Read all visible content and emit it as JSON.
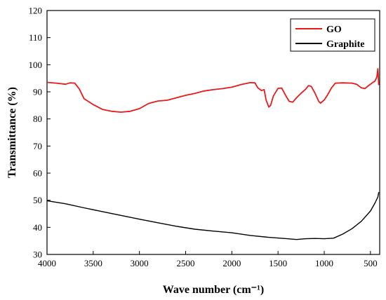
{
  "chart_data": {
    "type": "line",
    "xlabel": "Wave number (cm⁻¹)",
    "ylabel": "Transmittance (%)",
    "xlim": [
      4000,
      400
    ],
    "ylim": [
      30,
      120
    ],
    "x_reversed": true,
    "x_ticks": [
      4000,
      3500,
      3000,
      2500,
      2000,
      1500,
      1000,
      500
    ],
    "y_ticks": [
      30,
      40,
      50,
      60,
      70,
      80,
      90,
      100,
      110,
      120
    ],
    "grid": false,
    "legend_position": "top-right",
    "series": [
      {
        "name": "GO",
        "color": "#e8191a",
        "points": [
          [
            4000,
            93.5
          ],
          [
            3900,
            93.2
          ],
          [
            3800,
            92.8
          ],
          [
            3750,
            93.3
          ],
          [
            3700,
            93.2
          ],
          [
            3650,
            91.0
          ],
          [
            3600,
            87.5
          ],
          [
            3500,
            85.3
          ],
          [
            3400,
            83.5
          ],
          [
            3300,
            82.8
          ],
          [
            3200,
            82.5
          ],
          [
            3100,
            82.8
          ],
          [
            3000,
            83.8
          ],
          [
            2900,
            85.7
          ],
          [
            2800,
            86.6
          ],
          [
            2700,
            86.9
          ],
          [
            2600,
            87.8
          ],
          [
            2500,
            88.7
          ],
          [
            2400,
            89.4
          ],
          [
            2300,
            90.3
          ],
          [
            2200,
            90.8
          ],
          [
            2100,
            91.2
          ],
          [
            2000,
            91.7
          ],
          [
            1900,
            92.7
          ],
          [
            1800,
            93.4
          ],
          [
            1750,
            93.3
          ],
          [
            1720,
            91.5
          ],
          [
            1680,
            90.5
          ],
          [
            1650,
            90.8
          ],
          [
            1630,
            87.0
          ],
          [
            1600,
            84.4
          ],
          [
            1580,
            85.0
          ],
          [
            1550,
            88.5
          ],
          [
            1500,
            91.3
          ],
          [
            1460,
            91.4
          ],
          [
            1420,
            88.8
          ],
          [
            1380,
            86.5
          ],
          [
            1340,
            86.2
          ],
          [
            1300,
            87.8
          ],
          [
            1250,
            89.5
          ],
          [
            1200,
            91.0
          ],
          [
            1170,
            92.3
          ],
          [
            1140,
            92.0
          ],
          [
            1100,
            89.5
          ],
          [
            1060,
            86.5
          ],
          [
            1040,
            85.8
          ],
          [
            1000,
            87.0
          ],
          [
            970,
            88.5
          ],
          [
            920,
            91.5
          ],
          [
            880,
            93.2
          ],
          [
            800,
            93.3
          ],
          [
            700,
            93.2
          ],
          [
            650,
            92.8
          ],
          [
            600,
            91.5
          ],
          [
            560,
            91.2
          ],
          [
            520,
            92.3
          ],
          [
            480,
            93.3
          ],
          [
            450,
            94.0
          ],
          [
            430,
            95.5
          ],
          [
            420,
            98.5
          ],
          [
            415,
            96.0
          ],
          [
            410,
            92.5
          ]
        ]
      },
      {
        "name": "Graphite",
        "color": "#000000",
        "points": [
          [
            4000,
            49.8
          ],
          [
            3800,
            48.7
          ],
          [
            3600,
            47.2
          ],
          [
            3400,
            45.8
          ],
          [
            3200,
            44.4
          ],
          [
            3000,
            43.0
          ],
          [
            2800,
            41.7
          ],
          [
            2600,
            40.4
          ],
          [
            2400,
            39.3
          ],
          [
            2200,
            38.6
          ],
          [
            2000,
            38.0
          ],
          [
            1800,
            37.0
          ],
          [
            1600,
            36.3
          ],
          [
            1400,
            35.8
          ],
          [
            1300,
            35.5
          ],
          [
            1200,
            35.8
          ],
          [
            1100,
            35.9
          ],
          [
            1000,
            35.8
          ],
          [
            900,
            36.0
          ],
          [
            800,
            37.5
          ],
          [
            700,
            39.5
          ],
          [
            600,
            42.2
          ],
          [
            500,
            46.0
          ],
          [
            450,
            49.0
          ],
          [
            420,
            51.2
          ],
          [
            410,
            53.0
          ]
        ]
      }
    ]
  }
}
